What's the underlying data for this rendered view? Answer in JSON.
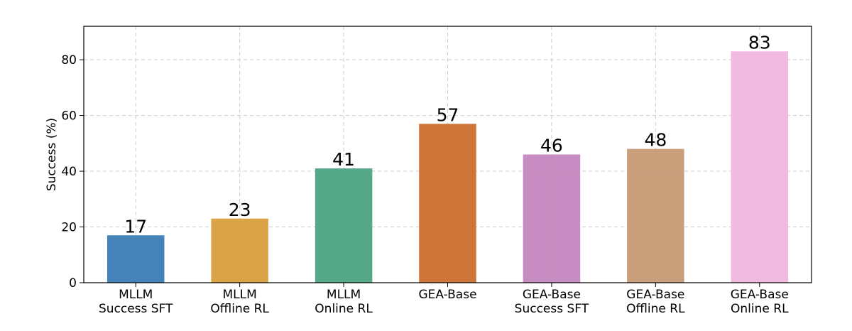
{
  "chart_data": {
    "type": "bar",
    "title": "",
    "xlabel": "",
    "ylabel": "Success (%)",
    "ylim": [
      0,
      92
    ],
    "yticks": [
      0,
      20,
      40,
      60,
      80
    ],
    "grid": true,
    "categories": [
      [
        "MLLM",
        "Success SFT"
      ],
      [
        "MLLM",
        "Offline RL"
      ],
      [
        "MLLM",
        "Online RL"
      ],
      [
        "GEA-Base"
      ],
      [
        "GEA-Base",
        "Success SFT"
      ],
      [
        "GEA-Base",
        "Offline RL"
      ],
      [
        "GEA-Base",
        "Online RL"
      ]
    ],
    "values": [
      17,
      23,
      41,
      57,
      46,
      48,
      83
    ],
    "data_labels": [
      "17",
      "23",
      "41",
      "57",
      "46",
      "48",
      "83"
    ],
    "colors": [
      "#3d7fb5",
      "#d9a042",
      "#4fa684",
      "#cc7234",
      "#c588bf",
      "#c89c78",
      "#f0b8e0"
    ]
  }
}
